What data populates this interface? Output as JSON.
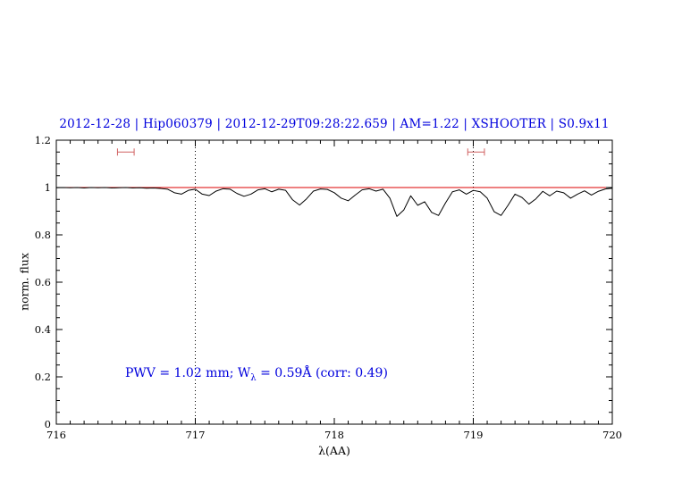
{
  "title": "2012-12-28 | Hip060379 | 2012-12-29T09:28:22.659 | AM=1.22 | XSHOOTER | S0.9x11",
  "annotation": {
    "prefix": "PWV = 1.02 mm; W",
    "subscript": "λ",
    "suffix": " = 0.59Å (corr: 0.49)"
  },
  "colors": {
    "title": "#0000dd",
    "annotation": "#0000dd",
    "spectrum": "#000000",
    "continuum": "#dd0000",
    "markers": "#d06060",
    "axis": "#000000"
  },
  "chart_data": {
    "type": "line",
    "title": "2012-12-28 | Hip060379 | 2012-12-29T09:28:22.659 | AM=1.22 | XSHOOTER | S0.9x11",
    "xlabel": "λ(AA)",
    "ylabel": "norm. flux",
    "xlim": [
      716,
      720
    ],
    "ylim": [
      0,
      1.2
    ],
    "x_ticks": [
      716,
      717,
      718,
      719,
      720
    ],
    "x_tick_labels": [
      "716",
      "717",
      "718",
      "719",
      "720"
    ],
    "x_minor_step": 0.1,
    "y_ticks": [
      0,
      0.2,
      0.4,
      0.6,
      0.8,
      1,
      1.2
    ],
    "y_tick_labels": [
      "0",
      "0.2",
      "0.4",
      "0.6",
      "0.8",
      "1",
      "1.2"
    ],
    "y_minor_step": 0.05,
    "grid": false,
    "legend": "none",
    "vlines_dotted": [
      717,
      719
    ],
    "continuum_y": 1.0,
    "range_markers": [
      {
        "x_center": 716.5,
        "half_width": 0.06,
        "y": 1.15
      },
      {
        "x_center": 719.02,
        "half_width": 0.06,
        "y": 1.15
      }
    ],
    "series": [
      {
        "name": "spectrum",
        "points": [
          [
            716.0,
            0.999
          ],
          [
            716.05,
            1.0
          ],
          [
            716.1,
            0.999
          ],
          [
            716.15,
            1.0
          ],
          [
            716.2,
            0.998
          ],
          [
            716.25,
            1.0
          ],
          [
            716.3,
            0.999
          ],
          [
            716.35,
            1.0
          ],
          [
            716.4,
            0.998
          ],
          [
            716.45,
            0.999
          ],
          [
            716.5,
            1.0
          ],
          [
            716.55,
            0.998
          ],
          [
            716.6,
            0.999
          ],
          [
            716.65,
            0.997
          ],
          [
            716.7,
            0.998
          ],
          [
            716.75,
            0.996
          ],
          [
            716.8,
            0.993
          ],
          [
            716.85,
            0.978
          ],
          [
            716.9,
            0.972
          ],
          [
            716.95,
            0.988
          ],
          [
            717.0,
            0.993
          ],
          [
            717.05,
            0.972
          ],
          [
            717.1,
            0.966
          ],
          [
            717.15,
            0.985
          ],
          [
            717.2,
            0.995
          ],
          [
            717.25,
            0.993
          ],
          [
            717.3,
            0.975
          ],
          [
            717.35,
            0.963
          ],
          [
            717.4,
            0.972
          ],
          [
            717.45,
            0.99
          ],
          [
            717.5,
            0.995
          ],
          [
            717.55,
            0.982
          ],
          [
            717.6,
            0.993
          ],
          [
            717.65,
            0.988
          ],
          [
            717.7,
            0.948
          ],
          [
            717.75,
            0.926
          ],
          [
            717.8,
            0.952
          ],
          [
            717.85,
            0.985
          ],
          [
            717.9,
            0.994
          ],
          [
            717.95,
            0.992
          ],
          [
            718.0,
            0.978
          ],
          [
            718.05,
            0.955
          ],
          [
            718.1,
            0.944
          ],
          [
            718.15,
            0.968
          ],
          [
            718.2,
            0.99
          ],
          [
            718.25,
            0.995
          ],
          [
            718.3,
            0.985
          ],
          [
            718.35,
            0.993
          ],
          [
            718.4,
            0.955
          ],
          [
            718.45,
            0.878
          ],
          [
            718.5,
            0.905
          ],
          [
            718.55,
            0.965
          ],
          [
            718.6,
            0.925
          ],
          [
            718.65,
            0.94
          ],
          [
            718.7,
            0.895
          ],
          [
            718.75,
            0.882
          ],
          [
            718.8,
            0.935
          ],
          [
            718.85,
            0.982
          ],
          [
            718.9,
            0.99
          ],
          [
            718.95,
            0.972
          ],
          [
            719.0,
            0.988
          ],
          [
            719.05,
            0.982
          ],
          [
            719.1,
            0.955
          ],
          [
            719.15,
            0.898
          ],
          [
            719.2,
            0.882
          ],
          [
            719.25,
            0.925
          ],
          [
            719.3,
            0.972
          ],
          [
            719.35,
            0.958
          ],
          [
            719.4,
            0.93
          ],
          [
            719.45,
            0.952
          ],
          [
            719.5,
            0.984
          ],
          [
            719.55,
            0.965
          ],
          [
            719.6,
            0.985
          ],
          [
            719.65,
            0.978
          ],
          [
            719.7,
            0.955
          ],
          [
            719.75,
            0.972
          ],
          [
            719.8,
            0.986
          ],
          [
            719.85,
            0.968
          ],
          [
            719.9,
            0.984
          ],
          [
            719.95,
            0.994
          ],
          [
            720.0,
            0.997
          ]
        ]
      }
    ]
  }
}
